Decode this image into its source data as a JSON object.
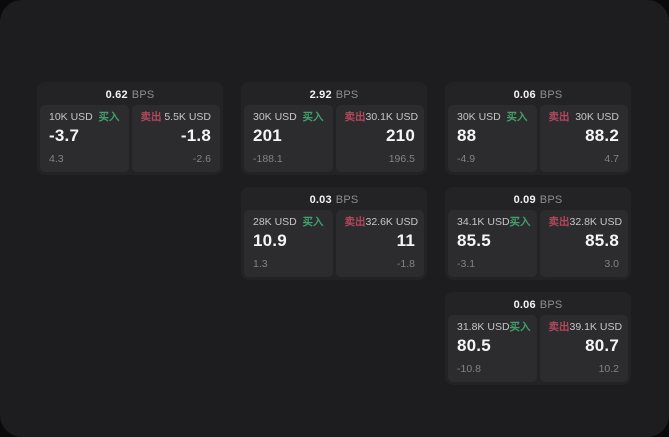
{
  "labels": {
    "bps_unit": "BPS",
    "buy": "买入",
    "sell": "卖出"
  },
  "colors": {
    "buy_green": "#41a06a",
    "sell_red": "#b2475c",
    "window_bg": "#1d1d1f",
    "card_bg": "#232325",
    "panel_bg": "#2c2c2e"
  },
  "cards": [
    {
      "bps": "0.62",
      "buy_size": "10K USD",
      "buy_price": "-3.7",
      "buy_sub": "4.3",
      "sell_size": "5.5K USD",
      "sell_price": "-1.8",
      "sell_sub": "-2.6"
    },
    {
      "bps": "2.92",
      "buy_size": "30K USD",
      "buy_price": "201",
      "buy_sub": "-188.1",
      "sell_size": "30.1K USD",
      "sell_price": "210",
      "sell_sub": "196.5"
    },
    {
      "bps": "0.06",
      "buy_size": "30K USD",
      "buy_price": "88",
      "buy_sub": "-4.9",
      "sell_size": "30K USD",
      "sell_price": "88.2",
      "sell_sub": "4.7"
    },
    {
      "bps": "0.03",
      "buy_size": "28K USD",
      "buy_price": "10.9",
      "buy_sub": "1.3",
      "sell_size": "32.6K USD",
      "sell_price": "11",
      "sell_sub": "-1.8"
    },
    {
      "bps": "0.09",
      "buy_size": "34.1K USD",
      "buy_price": "85.5",
      "buy_sub": "-3.1",
      "sell_size": "32.8K USD",
      "sell_price": "85.8",
      "sell_sub": "3.0"
    },
    {
      "bps": "0.06",
      "buy_size": "31.8K USD",
      "buy_price": "80.5",
      "buy_sub": "-10.8",
      "sell_size": "39.1K USD",
      "sell_price": "80.7",
      "sell_sub": "10.2"
    }
  ]
}
